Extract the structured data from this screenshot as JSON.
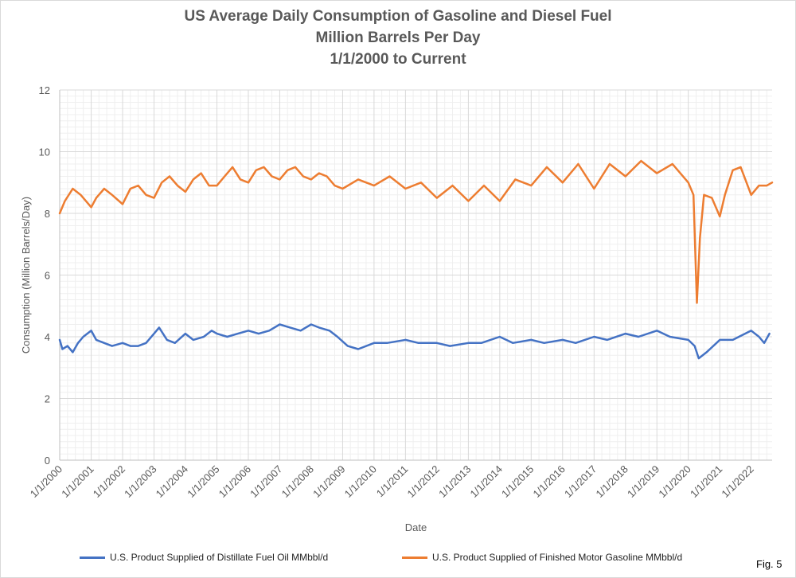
{
  "title_lines": [
    "US Average Daily Consumption of Gasoline and Diesel Fuel",
    "Million Barrels Per Day",
    "1/1/2000 to Current"
  ],
  "fig_label": "Fig. 5",
  "chart_data": {
    "type": "line",
    "title": "US Average Daily Consumption of Gasoline and Diesel Fuel",
    "subtitle": "Million Barrels Per Day / 1/1/2000 to Current",
    "xlabel": "Date",
    "ylabel": "Consumption (Million Barrels/Day)",
    "ylim": [
      0,
      12
    ],
    "yticks": [
      0,
      2,
      4,
      6,
      8,
      10,
      12
    ],
    "xlim": [
      "2000-01-01",
      "2022-09-01"
    ],
    "xticks": [
      "1/1/2000",
      "1/1/2001",
      "1/1/2002",
      "1/1/2003",
      "1/1/2004",
      "1/1/2005",
      "1/1/2006",
      "1/1/2007",
      "1/1/2008",
      "1/1/2009",
      "1/1/2010",
      "1/1/2011",
      "1/1/2012",
      "1/1/2013",
      "1/1/2014",
      "1/1/2015",
      "1/1/2016",
      "1/1/2017",
      "1/1/2018",
      "1/1/2019",
      "1/1/2020",
      "1/1/2021",
      "1/1/2022"
    ],
    "grid": true,
    "legend_position": "bottom",
    "series": [
      {
        "name": "U.S. Product Supplied of Distillate Fuel Oil MMbbl/d",
        "color": "#4472c4",
        "x": [
          "2000-01-01",
          "2000-02-01",
          "2000-04-01",
          "2000-06-01",
          "2000-08-01",
          "2000-10-01",
          "2001-01-01",
          "2001-03-01",
          "2001-06-01",
          "2001-09-01",
          "2002-01-01",
          "2002-04-01",
          "2002-07-01",
          "2002-10-01",
          "2003-01-01",
          "2003-03-01",
          "2003-06-01",
          "2003-09-01",
          "2004-01-01",
          "2004-04-01",
          "2004-08-01",
          "2004-11-01",
          "2005-01-01",
          "2005-05-01",
          "2005-09-01",
          "2006-01-01",
          "2006-05-01",
          "2006-09-01",
          "2007-01-01",
          "2007-05-01",
          "2007-09-01",
          "2008-01-01",
          "2008-04-01",
          "2008-08-01",
          "2008-11-01",
          "2009-03-01",
          "2009-07-01",
          "2010-01-01",
          "2010-06-01",
          "2011-01-01",
          "2011-06-01",
          "2012-01-01",
          "2012-06-01",
          "2013-01-01",
          "2013-06-01",
          "2014-01-01",
          "2014-06-01",
          "2015-01-01",
          "2015-06-01",
          "2016-01-01",
          "2016-06-01",
          "2017-01-01",
          "2017-06-01",
          "2018-01-01",
          "2018-06-01",
          "2019-01-01",
          "2019-06-01",
          "2020-01-01",
          "2020-03-15",
          "2020-05-01",
          "2020-08-01",
          "2021-01-01",
          "2021-06-01",
          "2022-01-01",
          "2022-04-01",
          "2022-06-01",
          "2022-08-01"
        ],
        "values": [
          3.9,
          3.6,
          3.7,
          3.5,
          3.8,
          4.0,
          4.2,
          3.9,
          3.8,
          3.7,
          3.8,
          3.7,
          3.7,
          3.8,
          4.1,
          4.3,
          3.9,
          3.8,
          4.1,
          3.9,
          4.0,
          4.2,
          4.1,
          4.0,
          4.1,
          4.2,
          4.1,
          4.2,
          4.4,
          4.3,
          4.2,
          4.4,
          4.3,
          4.2,
          4.0,
          3.7,
          3.6,
          3.8,
          3.8,
          3.9,
          3.8,
          3.8,
          3.7,
          3.8,
          3.8,
          4.0,
          3.8,
          3.9,
          3.8,
          3.9,
          3.8,
          4.0,
          3.9,
          4.1,
          4.0,
          4.2,
          4.0,
          3.9,
          3.7,
          3.3,
          3.5,
          3.9,
          3.9,
          4.2,
          4.0,
          3.8,
          4.1
        ]
      },
      {
        "name": "U.S. Product Supplied of Finished Motor Gasoline MMbbl/d",
        "color": "#ed7d31",
        "x": [
          "2000-01-01",
          "2000-03-01",
          "2000-06-01",
          "2000-09-01",
          "2001-01-01",
          "2001-03-01",
          "2001-06-01",
          "2001-09-01",
          "2002-01-01",
          "2002-04-01",
          "2002-07-01",
          "2002-10-01",
          "2003-01-01",
          "2003-04-01",
          "2003-07-01",
          "2003-10-01",
          "2004-01-01",
          "2004-04-01",
          "2004-07-01",
          "2004-10-01",
          "2005-01-01",
          "2005-04-01",
          "2005-07-01",
          "2005-10-01",
          "2006-01-01",
          "2006-04-01",
          "2006-07-01",
          "2006-10-01",
          "2007-01-01",
          "2007-04-01",
          "2007-07-01",
          "2007-10-01",
          "2008-01-01",
          "2008-04-01",
          "2008-07-01",
          "2008-10-01",
          "2009-01-01",
          "2009-07-01",
          "2010-01-01",
          "2010-07-01",
          "2011-01-01",
          "2011-07-01",
          "2012-01-01",
          "2012-07-01",
          "2013-01-01",
          "2013-07-01",
          "2014-01-01",
          "2014-07-01",
          "2015-01-01",
          "2015-07-01",
          "2016-01-01",
          "2016-07-01",
          "2017-01-01",
          "2017-07-01",
          "2018-01-01",
          "2018-07-01",
          "2019-01-01",
          "2019-07-01",
          "2020-01-01",
          "2020-03-01",
          "2020-04-10",
          "2020-05-15",
          "2020-07-01",
          "2020-10-01",
          "2021-01-01",
          "2021-03-01",
          "2021-06-01",
          "2021-09-01",
          "2022-01-01",
          "2022-04-01",
          "2022-07-01",
          "2022-09-01"
        ],
        "values": [
          8.0,
          8.4,
          8.8,
          8.6,
          8.2,
          8.5,
          8.8,
          8.6,
          8.3,
          8.8,
          8.9,
          8.6,
          8.5,
          9.0,
          9.2,
          8.9,
          8.7,
          9.1,
          9.3,
          8.9,
          8.9,
          9.2,
          9.5,
          9.1,
          9.0,
          9.4,
          9.5,
          9.2,
          9.1,
          9.4,
          9.5,
          9.2,
          9.1,
          9.3,
          9.2,
          8.9,
          8.8,
          9.1,
          8.9,
          9.2,
          8.8,
          9.0,
          8.5,
          8.9,
          8.4,
          8.9,
          8.4,
          9.1,
          8.9,
          9.5,
          9.0,
          9.6,
          8.8,
          9.6,
          9.2,
          9.7,
          9.3,
          9.6,
          9.0,
          8.6,
          5.1,
          7.2,
          8.6,
          8.5,
          7.9,
          8.6,
          9.4,
          9.5,
          8.6,
          8.9,
          8.9,
          9.0
        ]
      }
    ]
  }
}
